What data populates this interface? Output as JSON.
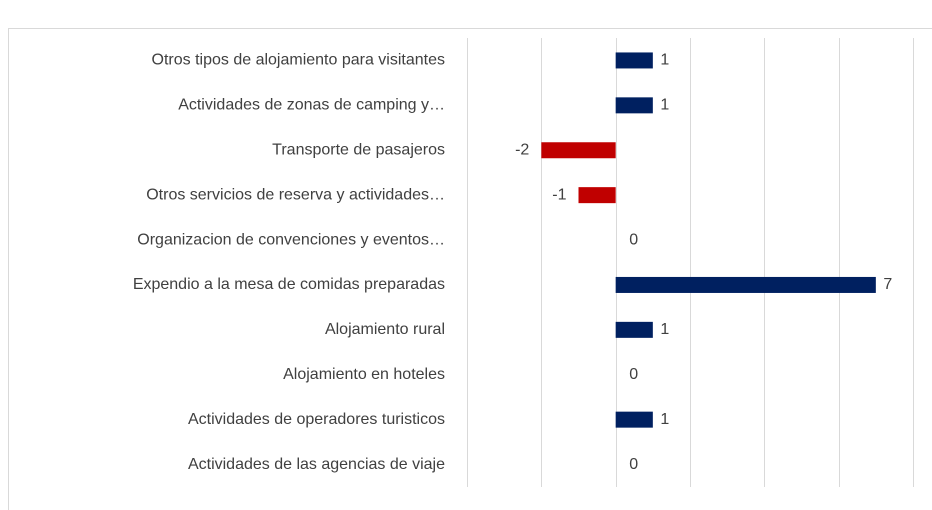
{
  "chart_data": {
    "type": "barh",
    "categories": [
      "Otros tipos de alojamiento para visitantes",
      "Actividades de zonas de camping y…",
      "Transporte de pasajeros",
      "Otros servicios de reserva y actividades…",
      "Organizacion de convenciones y eventos…",
      "Expendio a la mesa de comidas preparadas",
      "Alojamiento rural",
      "Alojamiento en hoteles",
      "Actividades de operadores turisticos",
      "Actividades de las agencias de viaje"
    ],
    "values": [
      1,
      1,
      -2,
      -1,
      0,
      7,
      1,
      0,
      1,
      0
    ],
    "positive_color": "#002060",
    "negative_color": "#c00000",
    "xlim": [
      -4,
      8
    ],
    "xticks": [
      -4,
      -2,
      0,
      2,
      4,
      6,
      8
    ],
    "grid": true
  }
}
